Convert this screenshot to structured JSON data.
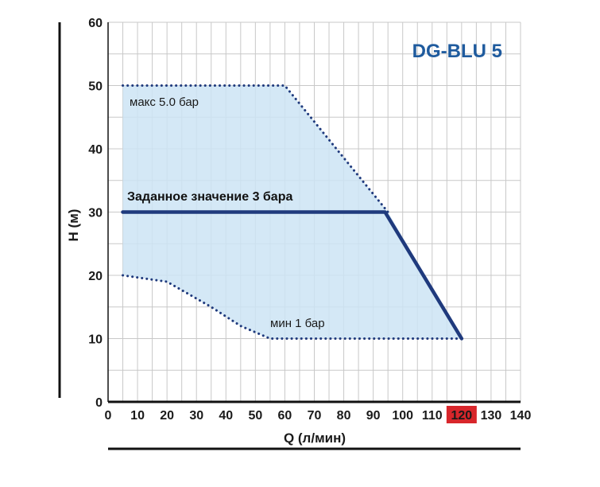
{
  "chart_data": {
    "type": "area",
    "title": "DG-BLU 5",
    "xlabel": "Q (л/мин)",
    "ylabel": "H (м)",
    "xlim": [
      0,
      140
    ],
    "ylim": [
      0,
      60
    ],
    "x_ticks": [
      "0",
      "10",
      "20",
      "30",
      "40",
      "50",
      "60",
      "70",
      "80",
      "90",
      "100",
      "110",
      "120",
      "130",
      "140"
    ],
    "y_ticks": [
      "0",
      "10",
      "20",
      "30",
      "40",
      "50",
      "60"
    ],
    "highlighted_x_tick": "120",
    "grid": true,
    "region": {
      "upper": [
        [
          5,
          50
        ],
        [
          60,
          50
        ],
        [
          95,
          30
        ],
        [
          120,
          10
        ]
      ],
      "lower": [
        [
          5,
          20
        ],
        [
          20,
          19
        ],
        [
          35,
          15
        ],
        [
          45,
          12
        ],
        [
          55,
          10
        ],
        [
          120,
          10
        ]
      ]
    },
    "series": [
      {
        "name": "макс  5.0 бар",
        "style": "dotted",
        "points": [
          [
            5,
            50
          ],
          [
            60,
            50
          ],
          [
            95,
            30
          ]
        ]
      },
      {
        "name": "Заданное значение 3 бара",
        "style": "solid",
        "points": [
          [
            5,
            30
          ],
          [
            94,
            30
          ],
          [
            120,
            10
          ]
        ]
      },
      {
        "name": "мин 1 бар",
        "style": "dotted",
        "points": [
          [
            5,
            20
          ],
          [
            20,
            19
          ],
          [
            35,
            15
          ],
          [
            45,
            12
          ],
          [
            55,
            10
          ],
          [
            120,
            10
          ]
        ]
      }
    ],
    "annotations": {
      "max": "макс  5.0 бар",
      "setpoint": "Заданное значение 3 бара",
      "min": "мин 1 бар"
    }
  },
  "colors": {
    "fill": "#cde4f5",
    "line": "#1f3a7d",
    "title": "#1f5b9e",
    "grid": "#c8c8c8",
    "highlight": "#d8262b"
  }
}
